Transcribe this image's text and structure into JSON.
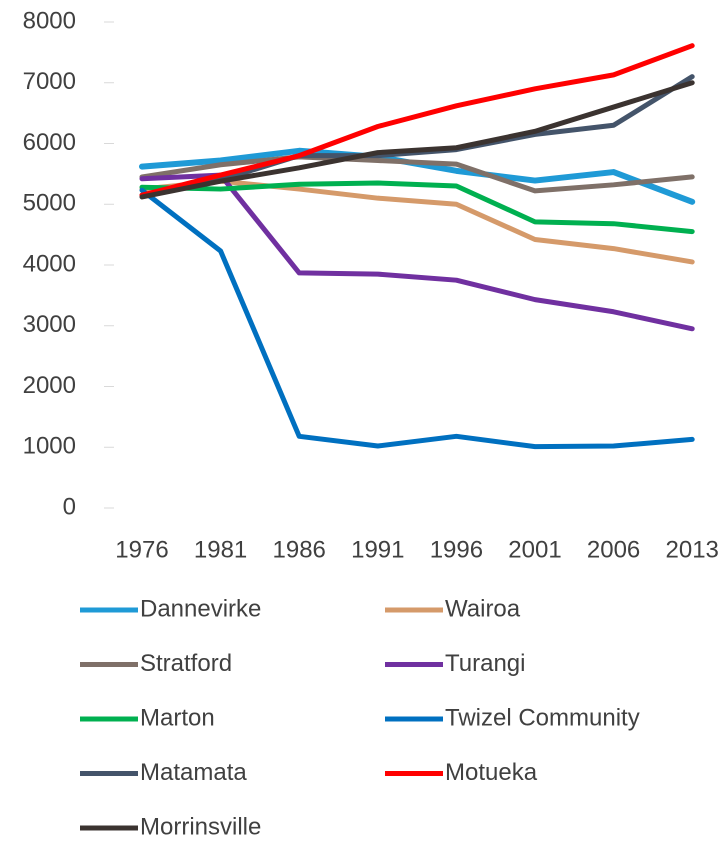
{
  "chart_data": {
    "type": "line",
    "categories": [
      "1976",
      "1981",
      "1986",
      "1991",
      "1996",
      "2001",
      "2006",
      "2013"
    ],
    "ylim": [
      0,
      8000
    ],
    "yticks": [
      0,
      1000,
      2000,
      3000,
      4000,
      5000,
      6000,
      7000,
      8000
    ],
    "grid": false,
    "series": [
      {
        "name": "Dannevirke",
        "color": "#1f9ad6",
        "values": [
          5620,
          5720,
          5880,
          5780,
          5550,
          5390,
          5530,
          5040
        ]
      },
      {
        "name": "Wairoa",
        "color": "#d59a6a",
        "values": [
          5250,
          5380,
          5250,
          5100,
          5000,
          4420,
          4270,
          4050
        ]
      },
      {
        "name": "Stratford",
        "color": "#7f7068",
        "values": [
          5450,
          5650,
          5780,
          5720,
          5660,
          5220,
          5320,
          5450
        ]
      },
      {
        "name": "Turangi",
        "color": "#7030a0",
        "values": [
          5420,
          5480,
          3870,
          3850,
          3750,
          3430,
          3230,
          2950
        ]
      },
      {
        "name": "Marton",
        "color": "#00b050",
        "values": [
          5280,
          5250,
          5330,
          5350,
          5300,
          4710,
          4680,
          4550
        ]
      },
      {
        "name": "Twizel Community",
        "color": "#0070c0",
        "values": [
          5230,
          4230,
          1180,
          1020,
          1180,
          1010,
          1020,
          1130
        ]
      },
      {
        "name": "Matamata",
        "color": "#44546a",
        "values": [
          5150,
          5400,
          5800,
          5800,
          5900,
          6150,
          6300,
          7100
        ]
      },
      {
        "name": "Motueka",
        "color": "#ff0000",
        "values": [
          5150,
          5480,
          5800,
          6280,
          6620,
          6900,
          7130,
          7610
        ]
      },
      {
        "name": "Morrinsville",
        "color": "#3b3330",
        "values": [
          5120,
          5380,
          5600,
          5850,
          5930,
          6200,
          6600,
          7000
        ]
      }
    ]
  }
}
